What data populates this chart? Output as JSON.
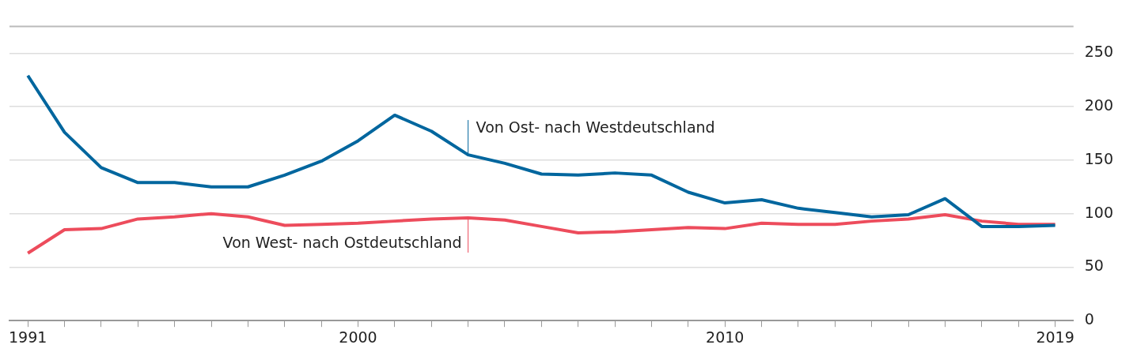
{
  "chart_data": {
    "type": "line",
    "x": [
      1991,
      1992,
      1993,
      1994,
      1995,
      1996,
      1997,
      1998,
      1999,
      2000,
      2001,
      2002,
      2003,
      2004,
      2005,
      2006,
      2007,
      2008,
      2009,
      2010,
      2011,
      2012,
      2013,
      2014,
      2015,
      2016,
      2017,
      2018,
      2019
    ],
    "series": [
      {
        "color": "#00669e",
        "values": [
          229,
          176,
          143,
          129,
          129,
          125,
          125,
          136,
          149,
          168,
          192,
          177,
          155,
          147,
          137,
          136,
          138,
          136,
          120,
          110,
          113,
          105,
          101,
          97,
          99,
          114,
          88,
          88,
          89
        ]
      },
      {
        "color": "#ed4c5c",
        "values": [
          63,
          85,
          86,
          95,
          97,
          100,
          97,
          89,
          90,
          91,
          93,
          95,
          96,
          94,
          88,
          82,
          83,
          85,
          87,
          86,
          91,
          90,
          90,
          93,
          95,
          99,
          93,
          90,
          90
        ]
      }
    ],
    "annotations": [
      {
        "text": "Von Ost- nach Westdeutschland",
        "x": 2003,
        "y": 155
      },
      {
        "text": "Von West- nach Ostdeutschland",
        "x": 2003,
        "y": 96
      }
    ],
    "xlim": [
      1990.5,
      2019.5
    ],
    "xticks": [
      1991,
      {
        "value": 1992,
        "label": null
      },
      {
        "value": 1993,
        "label": null
      },
      {
        "value": 1994,
        "label": null
      },
      {
        "value": 1995,
        "label": null
      },
      {
        "value": 1996,
        "label": null
      },
      {
        "value": 1997,
        "label": null
      },
      {
        "value": 1998,
        "label": null
      },
      {
        "value": 1999,
        "label": null
      },
      2000,
      {
        "value": 2001,
        "label": null
      },
      {
        "value": 2002,
        "label": null
      },
      {
        "value": 2003,
        "label": null
      },
      {
        "value": 2004,
        "label": null
      },
      {
        "value": 2005,
        "label": null
      },
      {
        "value": 2006,
        "label": null
      },
      {
        "value": 2007,
        "label": null
      },
      {
        "value": 2008,
        "label": null
      },
      {
        "value": 2009,
        "label": null
      },
      2010,
      {
        "value": 2011,
        "label": null
      },
      {
        "value": 2012,
        "label": null
      },
      {
        "value": 2013,
        "label": null
      },
      {
        "value": 2014,
        "label": null
      },
      {
        "value": 2015,
        "label": null
      },
      {
        "value": 2016,
        "label": null
      },
      {
        "value": 2017,
        "label": null
      },
      {
        "value": 2018,
        "label": null
      },
      2019
    ],
    "ylim": [
      0,
      275
    ],
    "yticks": [
      0,
      50,
      100,
      150,
      200,
      250
    ],
    "grid": "y",
    "legend": false,
    "marker": "none",
    "line_style": "solid"
  }
}
